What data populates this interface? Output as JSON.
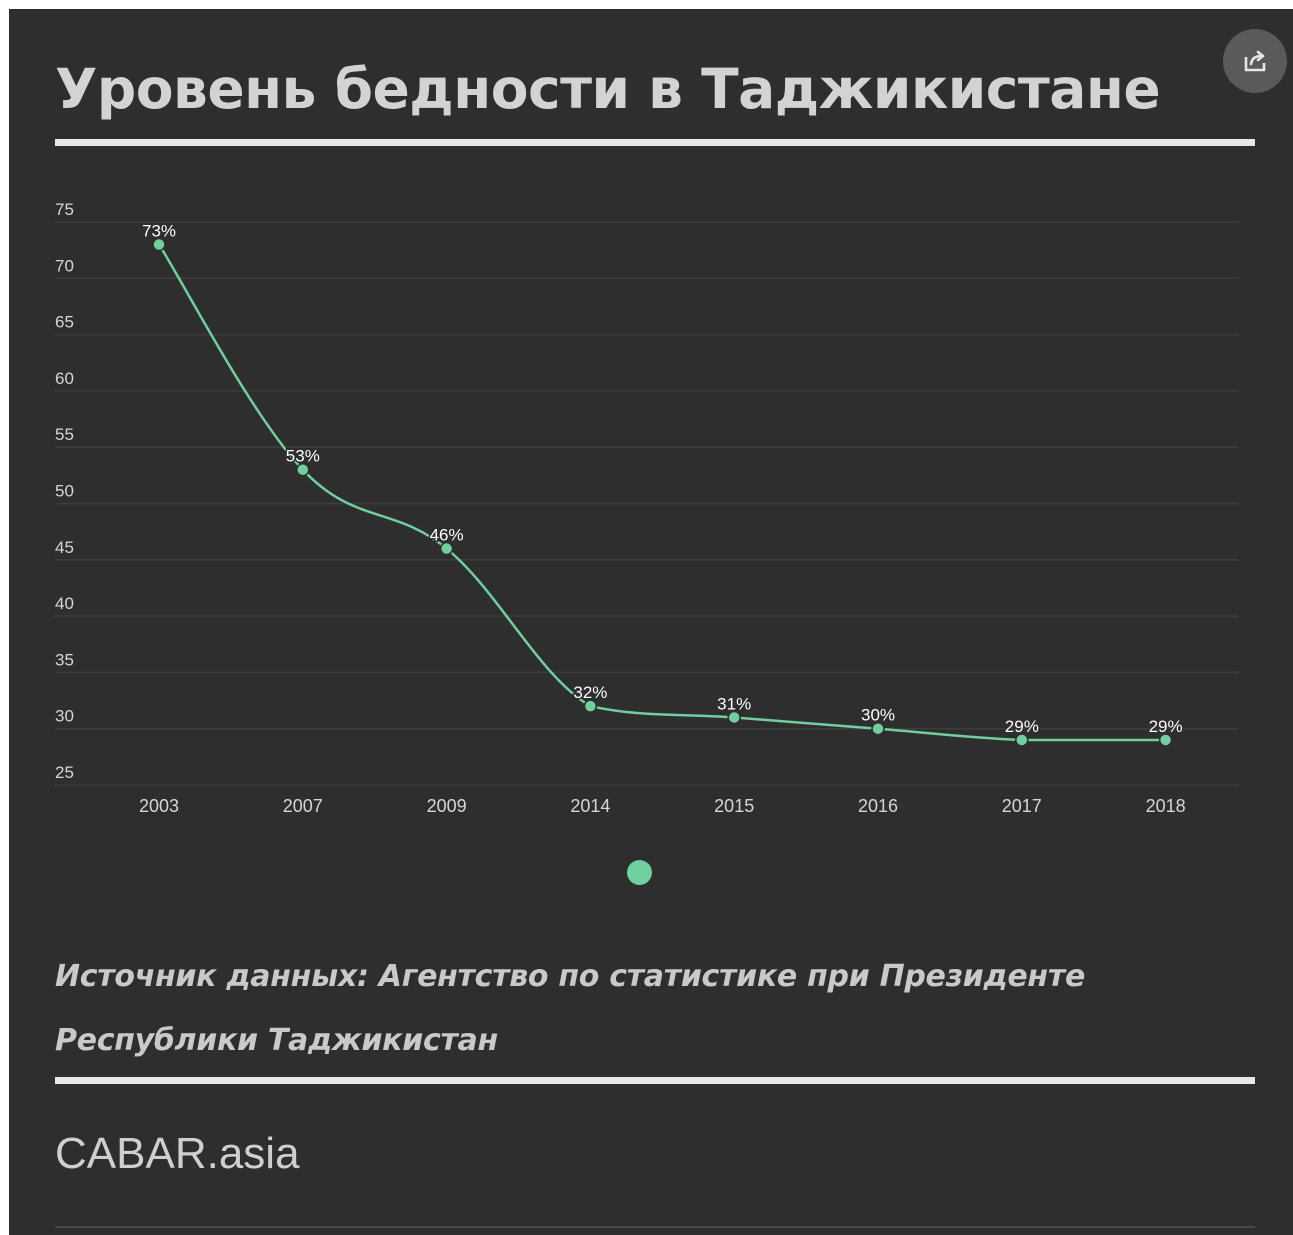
{
  "title": "Уровень бедности в Таджикистане",
  "share_icon": "share-icon",
  "colors": {
    "accent": "#6fcf9f",
    "background": "#2e2e2e",
    "text": "#d3d3d3"
  },
  "chart_data": {
    "type": "line",
    "title": "Уровень бедности в Таджикистане",
    "xlabel": "",
    "ylabel": "",
    "categories": [
      "2003",
      "2007",
      "2009",
      "2014",
      "2015",
      "2016",
      "2017",
      "2018"
    ],
    "series": [
      {
        "values": [
          73,
          53,
          46,
          32,
          31,
          30,
          29,
          29
        ],
        "labels": [
          "73%",
          "53%",
          "46%",
          "32%",
          "31%",
          "30%",
          "29%",
          "29%"
        ]
      }
    ],
    "yticks": [
      25,
      30,
      35,
      40,
      45,
      50,
      55,
      60,
      65,
      70,
      75
    ],
    "ylim": [
      25,
      75
    ],
    "grid": true,
    "legend": false,
    "smooth": true
  },
  "pagination": {
    "pages": 1,
    "active": 1
  },
  "source": "Источник данных: Агентство по статистике при Президенте Республики Таджикистан",
  "brand": "CABAR.asia"
}
